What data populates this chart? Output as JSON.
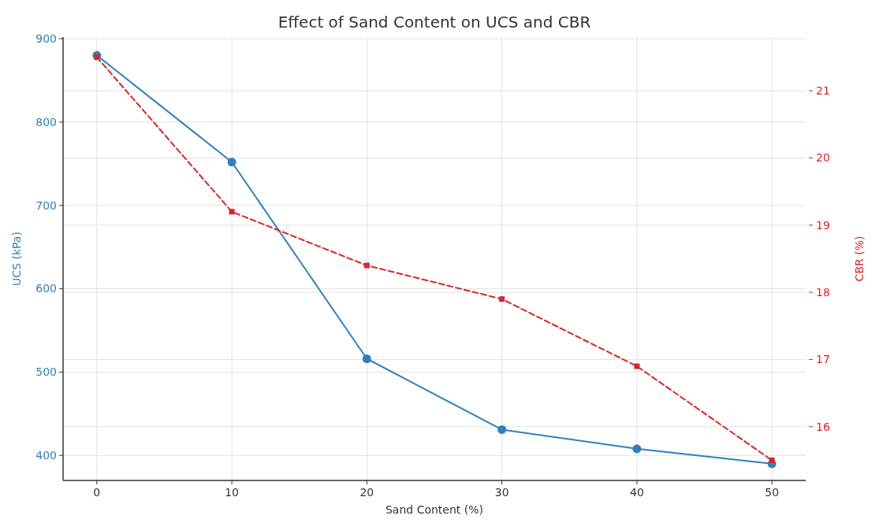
{
  "chart_data": {
    "type": "line",
    "title": "Effect of Sand Content on UCS and CBR",
    "xlabel": "Sand Content (%)",
    "ylabel": "UCS (kPa)",
    "y2label": "CBR (%)",
    "x": [
      0,
      10,
      20,
      30,
      40,
      50
    ],
    "xlim": [
      -2.5,
      52.5
    ],
    "xticks": [
      0,
      10,
      20,
      30,
      40,
      50
    ],
    "ylim": [
      370,
      902
    ],
    "yticks": [
      400,
      500,
      600,
      700,
      800,
      900
    ],
    "y2lim": [
      15.2,
      21.8
    ],
    "y2ticks": [
      16,
      17,
      18,
      19,
      20,
      21
    ],
    "grid": true,
    "series": [
      {
        "color": "#2f80bd",
        "values": [
          880,
          752,
          516,
          431,
          408,
          390
        ],
        "marker": "circle",
        "line_style": "solid"
      },
      {
        "color": "#d62728",
        "values": [
          21.5,
          19.2,
          18.4,
          17.9,
          16.9,
          15.5
        ],
        "marker": "square",
        "line_style": "dashed",
        "axis": "y2"
      }
    ]
  }
}
